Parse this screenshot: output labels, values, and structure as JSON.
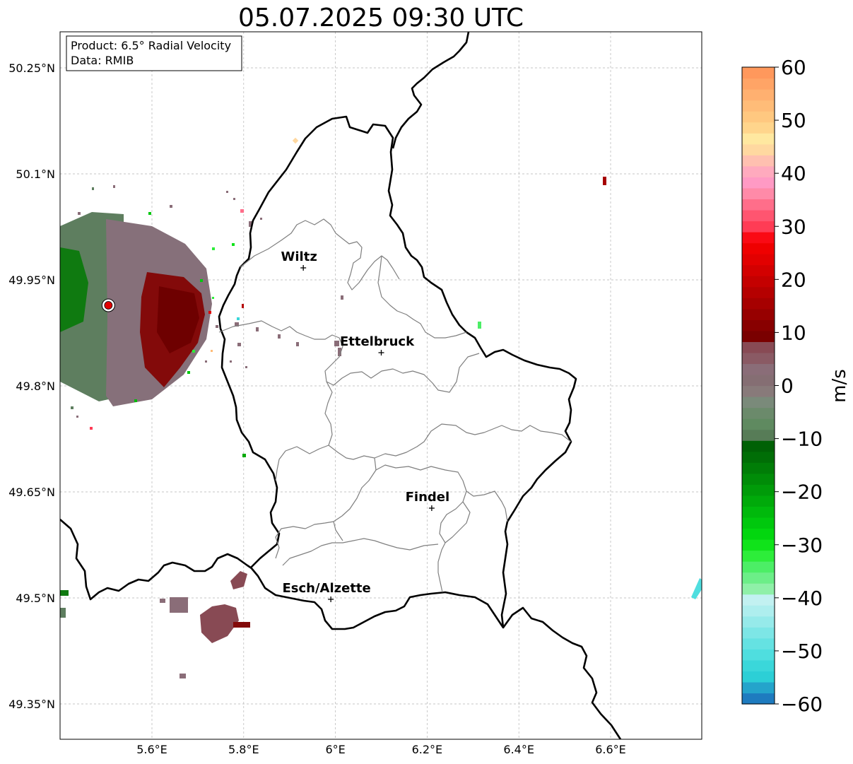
{
  "title": "05.07.2025 09:30 UTC",
  "info_box": {
    "product": "Product: 6.5° Radial Velocity",
    "data": "Data: RMIB"
  },
  "axes": {
    "lon_labels": [
      "5.6°E",
      "5.8°E",
      "6°E",
      "6.2°E",
      "6.4°E",
      "6.6°E"
    ],
    "lat_labels": [
      "50.25°N",
      "50.1°N",
      "49.95°N",
      "49.8°N",
      "49.65°N",
      "49.5°N",
      "49.35°N"
    ],
    "lon_values": [
      5.6,
      5.8,
      6.0,
      6.2,
      6.4,
      6.6
    ],
    "lat_values": [
      50.25,
      50.1,
      49.95,
      49.8,
      49.65,
      49.5,
      49.35
    ],
    "lon_range": [
      5.4,
      6.8
    ],
    "lat_range": [
      49.3,
      50.3
    ]
  },
  "cities": [
    {
      "name": "Wiltz",
      "lon": 5.93,
      "lat": 49.967
    },
    {
      "name": "Ettelbruck",
      "lon": 6.1,
      "lat": 49.847
    },
    {
      "name": "Findel",
      "lon": 6.21,
      "lat": 49.627
    },
    {
      "name": "Esch/Alzette",
      "lon": 5.99,
      "lat": 49.498
    }
  ],
  "radar_site": {
    "lon": 5.505,
    "lat": 49.914
  },
  "colorbar": {
    "label": "m/s",
    "ticks": [
      "60",
      "50",
      "40",
      "30",
      "20",
      "10",
      "0",
      "−10",
      "−20",
      "−30",
      "−40",
      "−50",
      "−60"
    ],
    "min": -60,
    "max": 60,
    "colors": [
      "#1e7bbf",
      "#24a4cb",
      "#2ccfd6",
      "#3ad7da",
      "#4fdedf",
      "#65e2e2",
      "#7de6e6",
      "#96eaea",
      "#aeeeee",
      "#c2f1f1",
      "#8ff0a8",
      "#6cee88",
      "#4cee66",
      "#2ded3a",
      "#10e31a",
      "#02d60f",
      "#00c80d",
      "#00b90c",
      "#00aa0a",
      "#009b09",
      "#008c08",
      "#007d07",
      "#006e06",
      "#006105",
      "#577c57",
      "#5f8a60",
      "#6b8a6b",
      "#7a8a7a",
      "#887a7a",
      "#856e73",
      "#8a6d78",
      "#8a5a64",
      "#884a54",
      "#7a0000",
      "#880000",
      "#970000",
      "#a60000",
      "#b50000",
      "#c40000",
      "#d30000",
      "#e20000",
      "#ef0000",
      "#fa0a14",
      "#ff3c55",
      "#ff5570",
      "#ff6e8a",
      "#ff8aa8",
      "#ff9ac4",
      "#ffaabe",
      "#ffc0b0",
      "#ffd8a0",
      "#ffe8a0",
      "#ffd58c",
      "#ffc880",
      "#ffbc78",
      "#ffb070",
      "#ffa466",
      "#ff985c"
    ]
  }
}
